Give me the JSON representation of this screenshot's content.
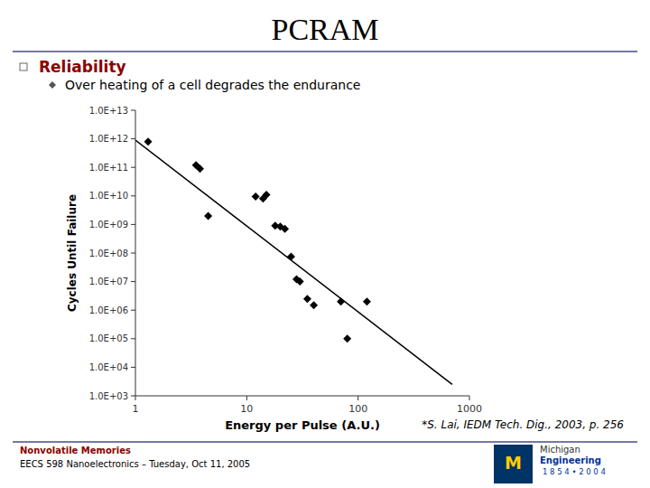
{
  "chart_data": {
    "type": "scatter",
    "title": "PCRAM",
    "xlabel": "Energy per Pulse (A.U.)",
    "ylabel": "Cycles Until Failure",
    "annotations": [
      "Reliability",
      "Over heating of a cell degrades the endurance",
      "*S. Lai, IEDM Tech. Dig., 2003, p. 256",
      "Nonvolatile Memories",
      "EECS 598 Nanoelectronics – Tuesday, Oct 11, 2005",
      "M",
      "Michigan",
      "Engineering",
      "1 8 5 4 • 2 0 0 4"
    ],
    "log": true,
    "grid": false,
    "xlim": [
      1,
      1000
    ],
    "ylim": [
      1000,
      10000000000000
    ],
    "xticks": [
      1,
      10,
      100,
      1000
    ],
    "yticks": [
      {
        "value": 1000,
        "label": "1.0E+03"
      },
      {
        "value": 10000,
        "label": "1.0E+04"
      },
      {
        "value": 100000,
        "label": "1.0E+05"
      },
      {
        "value": 1000000,
        "label": "1.0E+06"
      },
      {
        "value": 10000000,
        "label": "1.0E+07"
      },
      {
        "value": 100000000,
        "label": "1.0E+08"
      },
      {
        "value": 1000000000,
        "label": "1.0E+09"
      },
      {
        "value": 10000000000,
        "label": "1.0E+10"
      },
      {
        "value": 100000000000,
        "label": "1.0E+11"
      },
      {
        "value": 1000000000000,
        "label": "1.0E+12"
      },
      {
        "value": 10000000000000,
        "label": "1.0E+13"
      }
    ],
    "series": [
      {
        "type": "scatter",
        "marker": "diamond",
        "color": "#000000",
        "x": [
          1.3,
          3.5,
          3.8,
          4.5,
          12,
          14,
          15,
          18,
          20,
          22,
          25,
          28,
          30,
          35,
          40,
          70,
          80,
          120
        ],
        "values": [
          800000000000,
          120000000000,
          90000000000,
          2000000000,
          9500000000,
          8000000000,
          11000000000,
          900000000,
          850000000,
          700000000,
          75000000,
          12000000,
          10000000,
          2500000,
          1500000,
          2000000,
          100000,
          2000000
        ]
      },
      {
        "type": "line",
        "line_style": "solid",
        "color": "#000000",
        "x": [
          1,
          700
        ],
        "values": [
          900000000000,
          2500
        ]
      }
    ]
  }
}
